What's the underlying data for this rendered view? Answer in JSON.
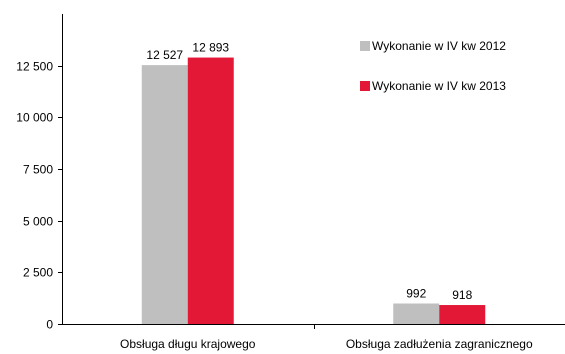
{
  "chart_data": {
    "type": "bar",
    "title": "",
    "xlabel": "",
    "ylabel": "",
    "categories": [
      "Obsługa długu krajowego",
      "Obsługa zadłużenia zagranicznego"
    ],
    "series": [
      {
        "name": "Wykonanie w IV kw 2012",
        "color": "#bfbfbf",
        "values": [
          12527,
          992
        ],
        "labels": [
          "12 527",
          "992"
        ]
      },
      {
        "name": "Wykonanie w IV kw 2013",
        "color": "#e31837",
        "values": [
          12893,
          918
        ],
        "labels": [
          "12 893",
          "918"
        ]
      }
    ],
    "ylim": [
      0,
      15000
    ],
    "yticks": [
      0,
      2500,
      5000,
      7500,
      10000,
      12500
    ],
    "ytick_labels": [
      "0",
      "2 500",
      "5 000",
      "7 500",
      "10 000",
      "12 500"
    ],
    "grid": false,
    "legend_position": "top-right"
  }
}
